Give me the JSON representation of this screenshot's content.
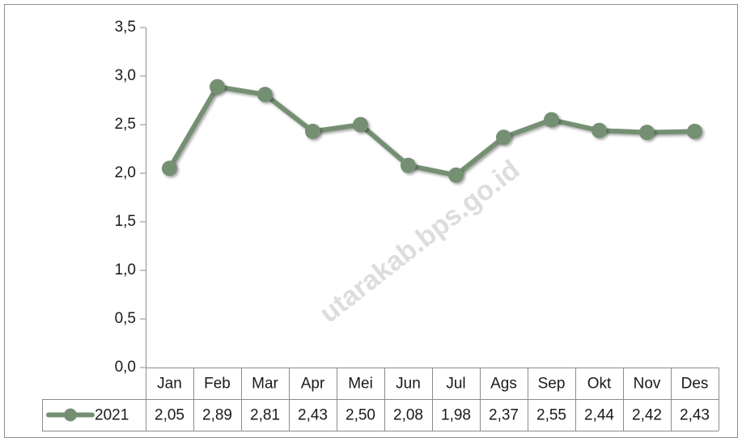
{
  "chart_data": {
    "type": "line",
    "categories": [
      "Jan",
      "Feb",
      "Mar",
      "Apr",
      "Mei",
      "Jun",
      "Jul",
      "Ags",
      "Sep",
      "Okt",
      "Nov",
      "Des"
    ],
    "series": [
      {
        "name": "2021",
        "color": "#758f72",
        "values": [
          2.05,
          2.89,
          2.81,
          2.43,
          2.5,
          2.08,
          1.98,
          2.37,
          2.55,
          2.44,
          2.42,
          2.43
        ],
        "value_labels": [
          "2,05",
          "2,89",
          "2,81",
          "2,43",
          "2,50",
          "2,08",
          "1,98",
          "2,37",
          "2,55",
          "2,44",
          "2,42",
          "2,43"
        ]
      }
    ],
    "ylim": [
      0,
      3.5
    ],
    "yticks": [
      {
        "value": 0,
        "label": "0,0"
      },
      {
        "value": 0.5,
        "label": "0,5"
      },
      {
        "value": 1,
        "label": "1,0"
      },
      {
        "value": 1.5,
        "label": "1,5"
      },
      {
        "value": 2,
        "label": "2,0"
      },
      {
        "value": 2.5,
        "label": "2,5"
      },
      {
        "value": 3,
        "label": "3,0"
      },
      {
        "value": 3.5,
        "label": "3,5"
      }
    ],
    "grid": false,
    "watermark": "utarakab.bps.go.id"
  }
}
